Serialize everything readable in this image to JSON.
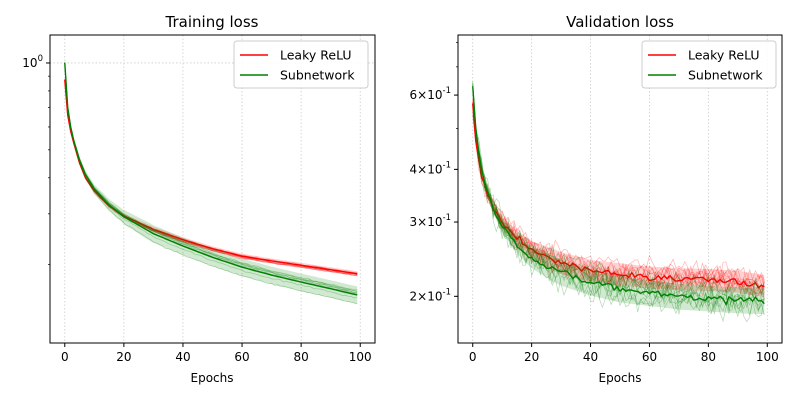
{
  "chart_data": [
    {
      "type": "line",
      "title": "Training loss",
      "xlabel": "Epochs",
      "ylabel": "",
      "xlim": [
        -5,
        105
      ],
      "ylim": [
        0.107,
        1.25
      ],
      "yscale": "log",
      "xticks": [
        0,
        20,
        40,
        60,
        80,
        100
      ],
      "xtick_labels": [
        "0",
        "20",
        "40",
        "60",
        "80",
        "100"
      ],
      "yticks": [
        1.0
      ],
      "ytick_labels": [
        "10^0"
      ],
      "grid": true,
      "legend": "top-right",
      "x": [
        0,
        1,
        2,
        3,
        5,
        7,
        10,
        15,
        20,
        30,
        40,
        50,
        60,
        70,
        80,
        90,
        99
      ],
      "series": [
        {
          "name": "Leaky ReLU",
          "color": "#ff0000",
          "spread": 0.02,
          "values": [
            0.875,
            0.66,
            0.58,
            0.53,
            0.45,
            0.4,
            0.36,
            0.32,
            0.295,
            0.265,
            0.244,
            0.227,
            0.214,
            0.206,
            0.199,
            0.192,
            0.186
          ]
        },
        {
          "name": "Subnetwork",
          "color": "#008000",
          "spread": 0.07,
          "values": [
            1.0,
            0.7,
            0.6,
            0.54,
            0.46,
            0.41,
            0.365,
            0.322,
            0.293,
            0.256,
            0.232,
            0.212,
            0.196,
            0.184,
            0.174,
            0.165,
            0.157
          ]
        }
      ]
    },
    {
      "type": "line",
      "title": "Validation loss",
      "xlabel": "Epochs",
      "ylabel": "",
      "xlim": [
        -5,
        105
      ],
      "ylim": [
        0.155,
        0.833
      ],
      "yscale": "log",
      "xticks": [
        0,
        20,
        40,
        60,
        80,
        100
      ],
      "xtick_labels": [
        "0",
        "20",
        "40",
        "60",
        "80",
        "100"
      ],
      "yticks": [
        0.6,
        0.4,
        0.3,
        0.2
      ],
      "ytick_labels": [
        "6×10^-1",
        "4×10^-1",
        "3×10^-1",
        "2×10^-1"
      ],
      "grid": true,
      "legend": "top-right",
      "x": [
        0,
        1,
        2,
        3,
        5,
        7,
        10,
        15,
        20,
        30,
        40,
        50,
        60,
        70,
        80,
        90,
        99
      ],
      "series": [
        {
          "name": "Leaky ReLU",
          "color": "#ff0000",
          "spread": 0.06,
          "values": [
            0.57,
            0.47,
            0.42,
            0.39,
            0.35,
            0.325,
            0.3,
            0.275,
            0.258,
            0.24,
            0.23,
            0.226,
            0.222,
            0.22,
            0.219,
            0.217,
            0.212
          ]
        },
        {
          "name": "Subnetwork",
          "color": "#008000",
          "spread": 0.07,
          "values": [
            0.63,
            0.5,
            0.44,
            0.4,
            0.355,
            0.325,
            0.295,
            0.265,
            0.247,
            0.228,
            0.216,
            0.208,
            0.204,
            0.2,
            0.198,
            0.196,
            0.195
          ]
        }
      ]
    }
  ]
}
